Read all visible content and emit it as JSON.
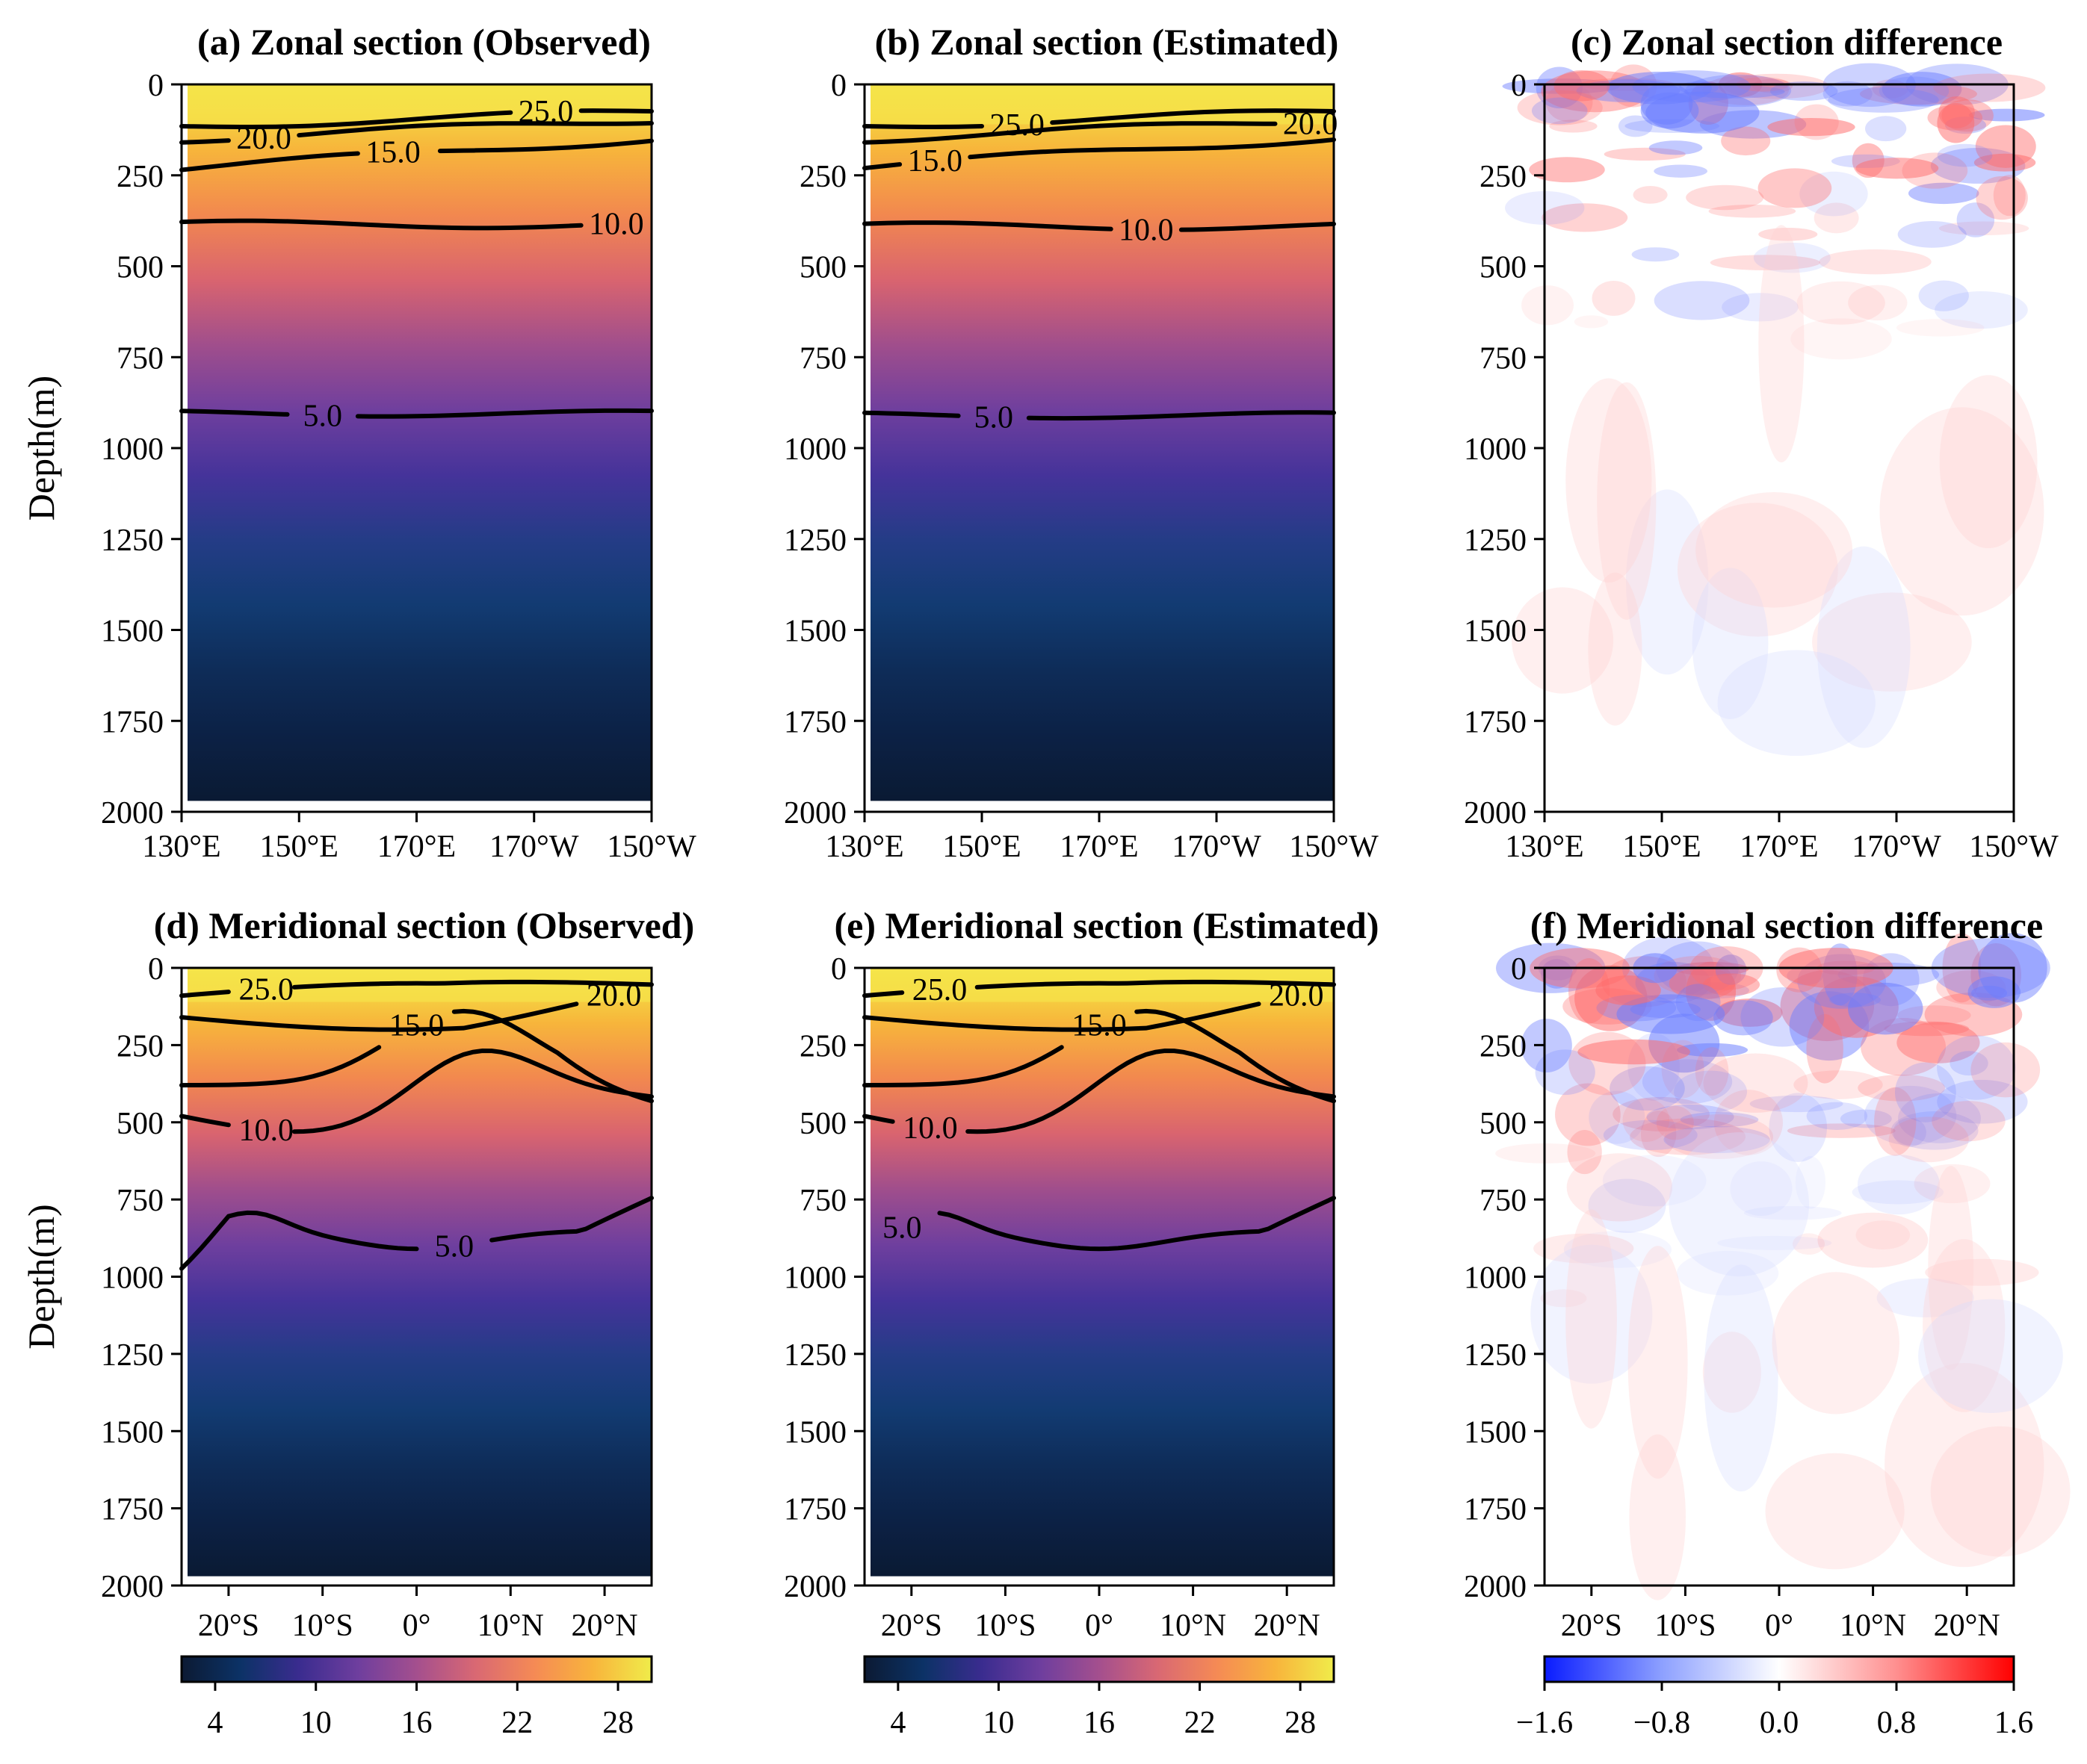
{
  "figure": {
    "ylabel": "Depth(m)",
    "colormaps": {
      "temperature": [
        "#0c1a33",
        "#0c3266",
        "#3a2c8f",
        "#6e3e9e",
        "#a44f8e",
        "#d96873",
        "#f58a55",
        "#f8b43c",
        "#f0ec4a"
      ],
      "difference": [
        "#0a1cff",
        "#8da0ff",
        "#ffffff",
        "#ff8f8f",
        "#ff0000"
      ]
    },
    "contour_color": "#000000"
  },
  "chart_data": [
    {
      "panel": "a",
      "type": "heatmap",
      "title": "(a) Zonal section (Observed)",
      "xlabel": "",
      "ylabel": "Depth(m)",
      "ylim": [
        0,
        2000
      ],
      "y_inverted": true,
      "x_ticks": [
        "130°E",
        "150°E",
        "170°E",
        "170°W",
        "150°W"
      ],
      "y_ticks": [
        "0",
        "250",
        "500",
        "750",
        "1000",
        "1250",
        "1500",
        "1750",
        "2000"
      ],
      "variable": "temperature",
      "colorbar": "shared row",
      "contours": [
        {
          "level": "25.0",
          "depth_m": 115
        },
        {
          "level": "20.0",
          "depth_m": 150
        },
        {
          "level": "15.0",
          "depth_m": 230
        },
        {
          "level": "10.0",
          "depth_m": 385
        },
        {
          "level": "5.0",
          "depth_m": 905
        }
      ]
    },
    {
      "panel": "b",
      "type": "heatmap",
      "title": "(b) Zonal section (Estimated)",
      "xlabel": "",
      "ylabel": "",
      "ylim": [
        0,
        2000
      ],
      "y_inverted": true,
      "x_ticks": [
        "130°E",
        "150°E",
        "170°E",
        "170°W",
        "150°W"
      ],
      "y_ticks": [
        "0",
        "250",
        "500",
        "750",
        "1000",
        "1250",
        "1500",
        "1750",
        "2000"
      ],
      "variable": "temperature",
      "colorbar": {
        "ticks": [
          "4",
          "10",
          "16",
          "22",
          "28"
        ],
        "range": [
          2,
          30
        ]
      },
      "contours": [
        {
          "level": "25.0",
          "depth_m": 115
        },
        {
          "level": "20.0",
          "depth_m": 150
        },
        {
          "level": "15.0",
          "depth_m": 225
        },
        {
          "level": "10.0",
          "depth_m": 390
        },
        {
          "level": "5.0",
          "depth_m": 910
        }
      ]
    },
    {
      "panel": "c",
      "type": "heatmap",
      "title": "(c) Zonal section difference",
      "xlabel": "",
      "ylabel": "",
      "ylim": [
        0,
        2000
      ],
      "y_inverted": true,
      "x_ticks": [
        "130°E",
        "150°E",
        "170°E",
        "170°W",
        "150°W"
      ],
      "y_ticks": [
        "0",
        "250",
        "500",
        "750",
        "1000",
        "1250",
        "1500",
        "1750",
        "2000"
      ],
      "variable": "difference",
      "colorbar": {
        "ticks": [
          "−1.6",
          "−0.8",
          "0.0",
          "0.8",
          "1.6"
        ],
        "range": [
          -1.6,
          1.6
        ]
      }
    },
    {
      "panel": "d",
      "type": "heatmap",
      "title": "(d) Meridional section (Observed)",
      "xlabel": "",
      "ylabel": "Depth(m)",
      "ylim": [
        0,
        2000
      ],
      "y_inverted": true,
      "x_ticks": [
        "20°S",
        "10°S",
        "0°",
        "10°N",
        "20°N"
      ],
      "y_ticks": [
        "0",
        "250",
        "500",
        "750",
        "1000",
        "1250",
        "1500",
        "1750",
        "2000"
      ],
      "variable": "temperature",
      "colorbar": {
        "ticks": [
          "4",
          "10",
          "16",
          "22",
          "28"
        ],
        "range": [
          2,
          30
        ]
      },
      "contours": [
        {
          "level": "25.0"
        },
        {
          "level": "20.0"
        },
        {
          "level": "15.0"
        },
        {
          "level": "10.0"
        },
        {
          "level": "5.0"
        }
      ]
    },
    {
      "panel": "e",
      "type": "heatmap",
      "title": "(e) Meridional section (Estimated)",
      "xlabel": "",
      "ylabel": "",
      "ylim": [
        0,
        2000
      ],
      "y_inverted": true,
      "x_ticks": [
        "20°S",
        "10°S",
        "0°",
        "10°N",
        "20°N"
      ],
      "y_ticks": [
        "0",
        "250",
        "500",
        "750",
        "1000",
        "1250",
        "1500",
        "1750",
        "2000"
      ],
      "variable": "temperature",
      "colorbar": {
        "ticks": [
          "4",
          "10",
          "16",
          "22",
          "28"
        ],
        "range": [
          2,
          30
        ]
      },
      "contours": [
        {
          "level": "25.0"
        },
        {
          "level": "20.0"
        },
        {
          "level": "15.0"
        },
        {
          "level": "10.0"
        },
        {
          "level": "5.0"
        }
      ]
    },
    {
      "panel": "f",
      "type": "heatmap",
      "title": "(f) Meridional section difference",
      "xlabel": "",
      "ylabel": "",
      "ylim": [
        0,
        2000
      ],
      "y_inverted": true,
      "x_ticks": [
        "20°S",
        "10°S",
        "0°",
        "10°N",
        "20°N"
      ],
      "y_ticks": [
        "0",
        "250",
        "500",
        "750",
        "1000",
        "1250",
        "1500",
        "1750",
        "2000"
      ],
      "variable": "difference",
      "colorbar": {
        "ticks": [
          "−1.6",
          "−0.8",
          "0.0",
          "0.8",
          "1.6"
        ],
        "range": [
          -1.6,
          1.6
        ]
      }
    }
  ]
}
